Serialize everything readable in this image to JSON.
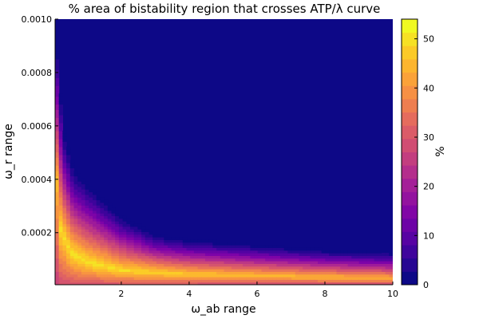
{
  "chart_data": {
    "type": "heatmap",
    "subtype": "filled-contour",
    "title": "% area of bistability region that crosses ATP/λ curve",
    "xlabel": "ω_ab range",
    "ylabel": "ω_r range",
    "xlim": [
      0.05,
      10
    ],
    "ylim": [
      5e-06,
      0.001
    ],
    "xticks": [
      2,
      4,
      6,
      8,
      10
    ],
    "xtick_labels": [
      "2",
      "4",
      "6",
      "8",
      "10"
    ],
    "yticks": [
      0.0002,
      0.0004,
      0.0006,
      0.0008,
      0.001
    ],
    "ytick_labels": [
      "0.0002",
      "0.0004",
      "0.0006",
      "0.0008",
      "0.0010"
    ],
    "colorbar": {
      "label": "%",
      "min": 0,
      "max": 54,
      "ticks": [
        0,
        10,
        20,
        30,
        40,
        50
      ],
      "tick_labels": [
        "0",
        "10",
        "20",
        "30",
        "40",
        "50"
      ],
      "levels": 20,
      "colormap": "plasma"
    },
    "grid": false,
    "ridge_points": [
      {
        "x": 0.05,
        "y": 0.00095,
        "value": 42
      },
      {
        "x": 0.1,
        "y": 0.0004,
        "value": 48
      },
      {
        "x": 0.2,
        "y": 0.00022,
        "value": 52
      },
      {
        "x": 0.5,
        "y": 0.00013,
        "value": 53
      },
      {
        "x": 1,
        "y": 9e-05,
        "value": 53
      },
      {
        "x": 2,
        "y": 6e-05,
        "value": 52
      },
      {
        "x": 4,
        "y": 4.5e-05,
        "value": 50
      },
      {
        "x": 6,
        "y": 4e-05,
        "value": 48
      },
      {
        "x": 8,
        "y": 3.5e-05,
        "value": 47
      },
      {
        "x": 10,
        "y": 3e-05,
        "value": 46
      }
    ],
    "upper_boundary": [
      {
        "x": 0.05,
        "y": 0.001
      },
      {
        "x": 0.3,
        "y": 0.0006
      },
      {
        "x": 0.6,
        "y": 0.00045
      },
      {
        "x": 1.2,
        "y": 0.00037
      },
      {
        "x": 2,
        "y": 0.00027
      },
      {
        "x": 3,
        "y": 0.0002
      },
      {
        "x": 4,
        "y": 0.00018
      },
      {
        "x": 6,
        "y": 0.00016
      },
      {
        "x": 8,
        "y": 0.00014
      },
      {
        "x": 10,
        "y": 0.00013
      }
    ]
  }
}
